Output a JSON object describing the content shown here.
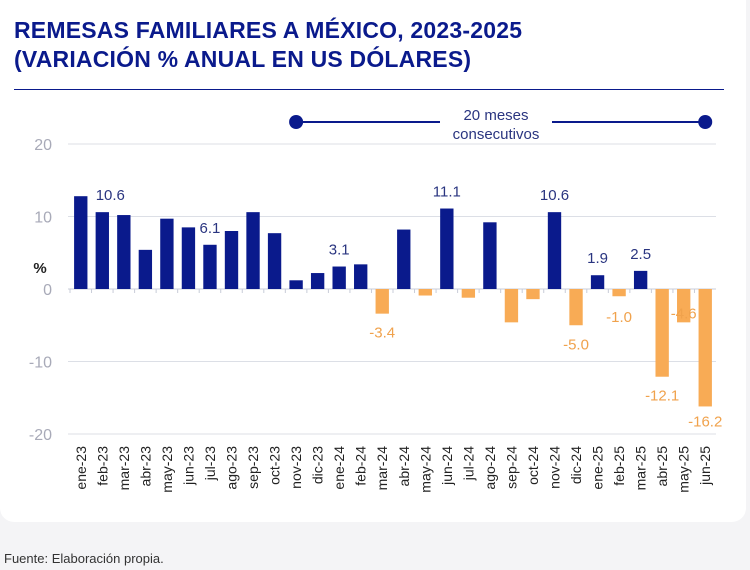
{
  "title_line1": "REMESAS FAMILIARES A MÉXICO, 2023-2025",
  "title_line2": "(VARIACIÓN % ANUAL EN US DÓLARES)",
  "footer": "Fuente: Elaboración propia.",
  "annotation": {
    "line1": "20 meses",
    "line2": "consecutivos",
    "from": "nov-23",
    "to": "jun-25"
  },
  "colors": {
    "positive": "#0a1a8c",
    "negative": "#f8ab55",
    "title": "#0a1a8c"
  },
  "chart_data": {
    "type": "bar",
    "title": "REMESAS FAMILIARES A MÉXICO, 2023-2025 (VARIACIÓN % ANUAL EN US DÓLARES)",
    "ylabel": "%",
    "xlabel": "",
    "ylim": [
      -20,
      20
    ],
    "yticks": [
      20,
      10,
      0,
      -10,
      -20
    ],
    "grid": true,
    "categories": [
      "ene-23",
      "feb-23",
      "mar-23",
      "abr-23",
      "may-23",
      "jun-23",
      "jul-23",
      "ago-23",
      "sep-23",
      "oct-23",
      "nov-23",
      "dic-23",
      "ene-24",
      "feb-24",
      "mar-24",
      "abr-24",
      "may-24",
      "jun-24",
      "jul-24",
      "ago-24",
      "sep-24",
      "oct-24",
      "nov-24",
      "dic-24",
      "ene-25",
      "feb-25",
      "mar-25",
      "abr-25",
      "may-25",
      "jun-25"
    ],
    "values": [
      12.8,
      10.6,
      10.2,
      5.4,
      9.7,
      8.5,
      6.1,
      8.0,
      10.6,
      7.7,
      1.2,
      2.2,
      3.1,
      3.4,
      -3.4,
      8.2,
      -0.9,
      11.1,
      -1.2,
      9.2,
      -4.6,
      -1.4,
      10.6,
      -5.0,
      1.9,
      -1.0,
      2.5,
      -12.1,
      -4.6,
      -16.2
    ],
    "data_labels": {
      "1": "10.6",
      "6": "6.1",
      "12": "3.1",
      "14": "-3.4",
      "17": "11.1",
      "22": "10.6",
      "23": "-5.0",
      "24": "1.9",
      "25": "-1.0",
      "26": "2.5",
      "27": "-12.1",
      "28": "-4.6",
      "29": "-16.2"
    }
  }
}
